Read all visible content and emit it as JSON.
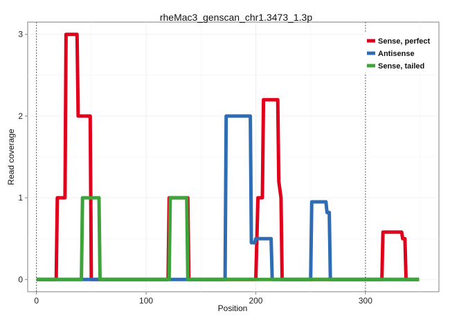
{
  "chart_data": {
    "type": "line",
    "title": "rheMac3_genscan_chr1.3473_1.3p",
    "xlabel": "Position",
    "ylabel": "Read coverage",
    "xlim": [
      -8,
      367
    ],
    "ylim": [
      -0.15,
      3.15
    ],
    "xticks": [
      0,
      100,
      200,
      300
    ],
    "yticks": [
      0,
      1,
      2,
      3
    ],
    "grid": true,
    "vlines": [
      0,
      300
    ],
    "legend_position": "top-right",
    "series": [
      {
        "name": "Sense, perfect",
        "color": "#e0001b",
        "x": [
          0,
          18,
          19,
          26,
          27,
          37,
          38,
          49,
          50,
          120,
          121,
          138,
          139,
          200,
          202,
          206,
          207,
          220,
          221,
          223,
          224,
          315,
          316,
          333,
          334,
          336,
          337,
          349
        ],
        "y": [
          0,
          0,
          1,
          1,
          3,
          3,
          2,
          2,
          0,
          0,
          1,
          1,
          0,
          0,
          1,
          1,
          2.2,
          2.2,
          1.2,
          1,
          0,
          0,
          0.58,
          0.58,
          0.5,
          0.5,
          0,
          0
        ]
      },
      {
        "name": "Antisense",
        "color": "#2e6db4",
        "x": [
          0,
          172,
          173,
          195,
          196,
          199,
          200,
          214,
          215,
          250,
          251,
          264,
          265,
          267,
          268,
          349
        ],
        "y": [
          0,
          0,
          2,
          2,
          0.45,
          0.45,
          0.5,
          0.5,
          0,
          0,
          0.95,
          0.95,
          0.82,
          0.82,
          0,
          0
        ]
      },
      {
        "name": "Sense, tailed",
        "color": "#3ea33a",
        "x": [
          0,
          41,
          42,
          57,
          58,
          121,
          122,
          137,
          138,
          349
        ],
        "y": [
          0,
          0,
          1,
          1,
          0,
          0,
          1,
          1,
          0,
          0
        ]
      }
    ]
  }
}
